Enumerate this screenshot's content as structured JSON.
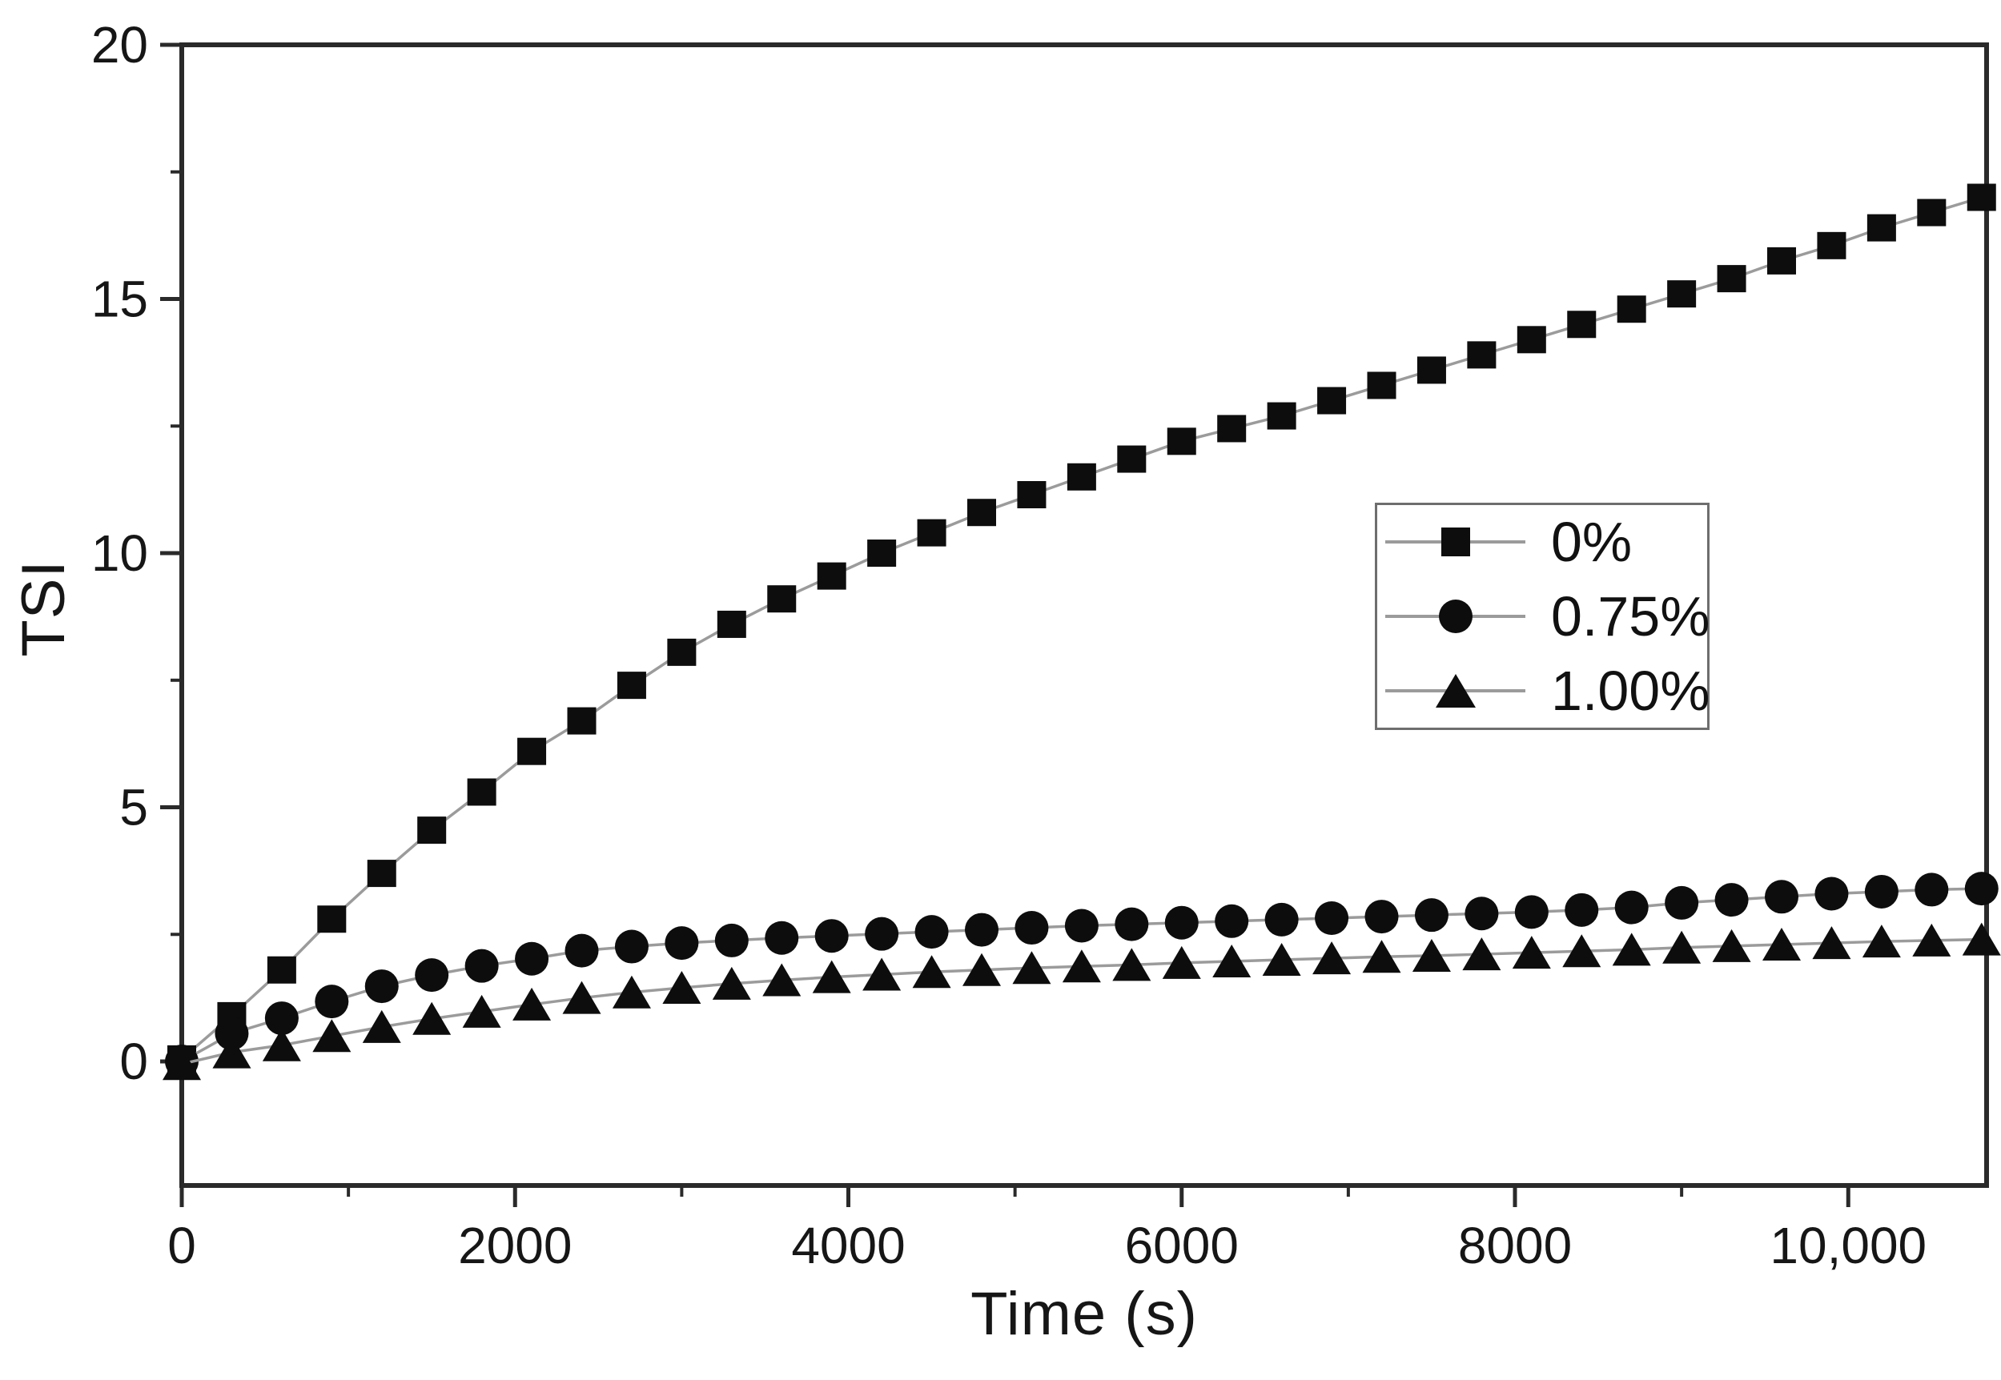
{
  "page": {
    "background": "#ffffff"
  },
  "chart_data": {
    "type": "line",
    "title": "",
    "xlabel": "Time (s)",
    "ylabel": "TSI",
    "grid": false,
    "legend_position": "right-middle",
    "xlim": [
      0,
      10830
    ],
    "ylim": [
      -2.44,
      20
    ],
    "x": [
      0,
      300,
      600,
      900,
      1200,
      1500,
      1800,
      2100,
      2400,
      2700,
      3000,
      3300,
      3600,
      3900,
      4200,
      4500,
      4800,
      5100,
      5400,
      5700,
      6000,
      6300,
      6600,
      6900,
      7200,
      7500,
      7800,
      8100,
      8400,
      8700,
      9000,
      9300,
      9600,
      9900,
      10200,
      10500,
      10800
    ],
    "series": [
      {
        "name": "0%",
        "marker": "square",
        "values": [
          0.05,
          0.9,
          1.8,
          2.8,
          3.7,
          4.55,
          5.3,
          6.1,
          6.7,
          7.4,
          8.05,
          8.6,
          9.1,
          9.55,
          10.0,
          10.4,
          10.8,
          11.15,
          11.5,
          11.85,
          12.2,
          12.45,
          12.7,
          13.0,
          13.3,
          13.6,
          13.9,
          14.2,
          14.5,
          14.8,
          15.1,
          15.4,
          15.75,
          16.05,
          16.4,
          16.7,
          17.0
        ]
      },
      {
        "name": "0.75%",
        "marker": "circle",
        "values": [
          0.0,
          0.55,
          0.85,
          1.18,
          1.48,
          1.7,
          1.88,
          2.02,
          2.18,
          2.26,
          2.33,
          2.38,
          2.43,
          2.47,
          2.51,
          2.55,
          2.59,
          2.63,
          2.67,
          2.7,
          2.73,
          2.76,
          2.79,
          2.82,
          2.85,
          2.88,
          2.91,
          2.94,
          2.98,
          3.03,
          3.12,
          3.18,
          3.24,
          3.3,
          3.34,
          3.38,
          3.4
        ]
      },
      {
        "name": "1.00%",
        "marker": "triangle",
        "values": [
          -0.05,
          0.18,
          0.32,
          0.5,
          0.68,
          0.84,
          0.98,
          1.12,
          1.25,
          1.36,
          1.45,
          1.53,
          1.6,
          1.66,
          1.71,
          1.76,
          1.8,
          1.84,
          1.87,
          1.9,
          1.94,
          1.97,
          2.0,
          2.03,
          2.06,
          2.08,
          2.11,
          2.14,
          2.17,
          2.2,
          2.24,
          2.27,
          2.3,
          2.33,
          2.36,
          2.38,
          2.4
        ]
      }
    ],
    "x_ticks_major": {
      "values": [
        0,
        2000,
        4000,
        6000,
        8000,
        10000
      ],
      "labels": [
        "0",
        "2000",
        "4000",
        "6000",
        "8000",
        "10,000"
      ]
    },
    "x_ticks_minor": [
      1000,
      3000,
      5000,
      7000,
      9000
    ],
    "y_ticks_major": {
      "values": [
        0,
        5,
        10,
        15,
        20
      ],
      "labels": [
        "0",
        "5",
        "10",
        "15",
        "20"
      ]
    },
    "y_ticks_minor": [
      2.5,
      7.5,
      12.5,
      17.5
    ],
    "colors": {
      "marker": "#0d0d0d",
      "line": "#9b9b9b",
      "axis": "#2a2a2a",
      "text": "#161616",
      "legend_border": "#6e6e6e",
      "background": "#ffffff"
    }
  }
}
